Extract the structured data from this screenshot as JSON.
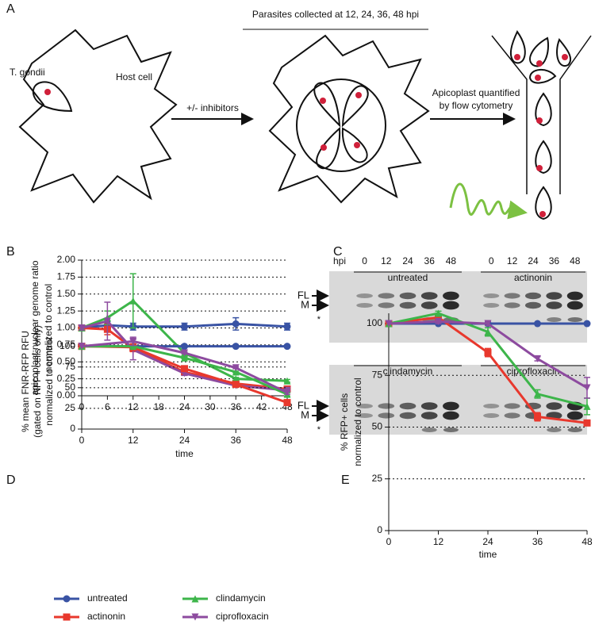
{
  "diagram": {
    "panel": "A",
    "header": "Parasites collected at 12, 24, 36, 48 hpi",
    "parasite_label": "T. gondii",
    "host_label": "Host cell",
    "treatment_label": "+/- inhibitors",
    "readout_label": [
      "Apicoplast quantified",
      "by flow cytometry"
    ]
  },
  "blot": {
    "panel": "C",
    "hpi_label": "hpi",
    "rows": [
      {
        "groups": [
          {
            "name": "untreated",
            "lanes": [
              0,
              12,
              24,
              36,
              48
            ]
          },
          {
            "name": "actinonin",
            "lanes": [
              0,
              12,
              24,
              36,
              48
            ]
          }
        ],
        "band_labels": [
          "FL",
          "M",
          "*"
        ]
      },
      {
        "groups": [
          {
            "name": "clindamycin"
          },
          {
            "name": "ciprofloxacin"
          }
        ],
        "band_labels": [
          "FL",
          "M",
          "*"
        ]
      }
    ]
  },
  "chart_data": [
    {
      "type": "line",
      "panel": "B",
      "ylabel": [
        "apicoplast:nuclear genome ratio",
        "normalized to control"
      ],
      "x": [
        0,
        6,
        12,
        24,
        36,
        48
      ],
      "xlim": [
        0,
        48
      ],
      "xticks": [
        0,
        6,
        12,
        18,
        24,
        30,
        36,
        42,
        48
      ],
      "ylim": [
        0,
        2
      ],
      "yticks": [
        {
          "value": 0,
          "label": "0.00"
        },
        {
          "value": 0.25,
          "label": "0.25"
        },
        {
          "value": 0.5,
          "label": "0.50"
        },
        {
          "value": 0.75,
          "label": "0.75"
        },
        {
          "value": 1,
          "label": "1.00"
        },
        {
          "value": 1.25,
          "label": "1.25"
        },
        {
          "value": 1.5,
          "label": "1.50"
        },
        {
          "value": 1.75,
          "label": "1.75"
        },
        {
          "value": 2,
          "label": "2.00"
        }
      ],
      "grid": true,
      "legend": "bottom",
      "series": [
        {
          "name": "untreated",
          "color": "#3953a4",
          "marker": "circle",
          "values": [
            1.0,
            1.04,
            1.02,
            1.02,
            1.06,
            1.02
          ],
          "errors": [
            0.03,
            0.05,
            0.05,
            0.05,
            0.09,
            0.05
          ]
        },
        {
          "name": "actinonin",
          "color": "#e8382d",
          "marker": "square",
          "values": [
            1.0,
            0.98,
            0.7,
            0.35,
            0.18,
            0.1
          ],
          "errors": [
            0.03,
            0.08,
            0.05,
            0.03,
            0.02,
            0.02
          ]
        },
        {
          "name": "clindamycin",
          "color": "#3db54a",
          "marker": "triangle-up",
          "values": [
            1.0,
            1.15,
            1.4,
            0.63,
            0.25,
            0.22
          ],
          "errors": [
            0.03,
            0.1,
            0.4,
            0.04,
            0.02,
            0.02
          ]
        },
        {
          "name": "ciprofloxacin",
          "color": "#8d4b9f",
          "marker": "triangle-down",
          "values": [
            1.0,
            1.1,
            0.68,
            0.33,
            0.15,
            0.08
          ],
          "errors": [
            0.03,
            0.28,
            0.15,
            0.03,
            0.02,
            0.02
          ]
        }
      ]
    },
    {
      "type": "line",
      "panel": "D",
      "ylabel": [
        "% mean FNR-RFP RFU",
        "(gated on RFP+ cells only)",
        "normalized to control"
      ],
      "xlabel": "time",
      "x": [
        0,
        12,
        24,
        36,
        48
      ],
      "xlim": [
        0,
        48
      ],
      "xticks": [
        0,
        12,
        24,
        36,
        48
      ],
      "ylim": [
        0,
        115
      ],
      "yticks": [
        0,
        25,
        50,
        75,
        100
      ],
      "grid": true,
      "series": [
        {
          "color": "#3953a4",
          "marker": "circle",
          "values": [
            100,
            100,
            100,
            100,
            100
          ],
          "errors": [
            0,
            0,
            0,
            0,
            0
          ]
        },
        {
          "color": "#e8382d",
          "marker": "square",
          "values": [
            100,
            99,
            73,
            54,
            32
          ],
          "errors": [
            0,
            4,
            2,
            1,
            3
          ]
        },
        {
          "color": "#3db54a",
          "marker": "triangle-up",
          "values": [
            100,
            100,
            86,
            69,
            42
          ],
          "errors": [
            0,
            1,
            1,
            1,
            2
          ]
        },
        {
          "color": "#8d4b9f",
          "marker": "triangle-down",
          "values": [
            100,
            106,
            92,
            74,
            44
          ],
          "errors": [
            0,
            5,
            1,
            1,
            2
          ]
        }
      ]
    },
    {
      "type": "line",
      "panel": "E",
      "ylabel": [
        "% RFP+ cells",
        "normalized to control"
      ],
      "xlabel": "time",
      "x": [
        0,
        12,
        24,
        36,
        48
      ],
      "xlim": [
        0,
        48
      ],
      "xticks": [
        0,
        12,
        24,
        36,
        48
      ],
      "ylim": [
        0,
        105
      ],
      "yticks": [
        0,
        25,
        50,
        75,
        100
      ],
      "grid": true,
      "series": [
        {
          "color": "#3953a4",
          "marker": "circle",
          "values": [
            100,
            100,
            100,
            100,
            100
          ],
          "errors": [
            0,
            0,
            0,
            0,
            0
          ]
        },
        {
          "color": "#e8382d",
          "marker": "square",
          "values": [
            100,
            103,
            86,
            55,
            52
          ],
          "errors": [
            0,
            1,
            2,
            2,
            1
          ]
        },
        {
          "color": "#3db54a",
          "marker": "triangle-up",
          "values": [
            100,
            105,
            96,
            66,
            60
          ],
          "errors": [
            0,
            1,
            2,
            2,
            4
          ]
        },
        {
          "color": "#8d4b9f",
          "marker": "triangle-down",
          "values": [
            100,
            101,
            100,
            83,
            69
          ],
          "errors": [
            0,
            1,
            1,
            1,
            5
          ]
        }
      ]
    }
  ]
}
